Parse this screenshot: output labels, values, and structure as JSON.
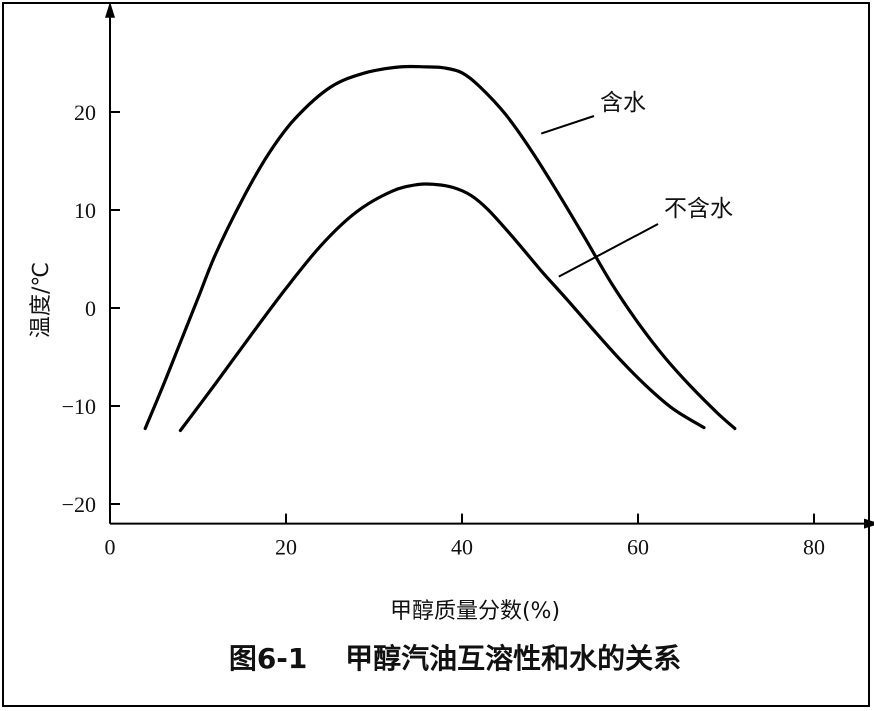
{
  "chart_data": {
    "type": "line",
    "xlabel": "甲醇质量分数(%)",
    "ylabel": "温度/℃",
    "caption": {
      "figure_number": "图6-1",
      "title": "甲醇汽油互溶性和水的关系"
    },
    "xlim": [
      0,
      85
    ],
    "ylim": [
      -22,
      29
    ],
    "x_ticks": [
      0,
      20,
      40,
      60,
      80
    ],
    "y_ticks": [
      -20,
      -10,
      0,
      10,
      20
    ],
    "x_tick_labels": [
      "0",
      "20",
      "40",
      "60",
      "80"
    ],
    "y_tick_labels": [
      "−20",
      "−10",
      "0",
      "10",
      "20"
    ],
    "grid": false,
    "legend": "none; series labeled by leader-line annotations",
    "series": [
      {
        "name": "含水",
        "color": "#000000",
        "x": [
          4,
          6,
          8,
          10,
          12,
          15,
          18,
          21,
          25,
          29,
          33,
          36,
          38,
          40,
          42,
          45,
          48,
          51,
          54,
          57,
          60,
          63,
          66,
          69,
          71
        ],
        "y": [
          -12.3,
          -8.0,
          -3.5,
          1.0,
          5.5,
          11.0,
          15.7,
          19.3,
          22.5,
          24.0,
          24.6,
          24.6,
          24.5,
          24.0,
          22.6,
          19.7,
          15.9,
          11.6,
          7.1,
          2.5,
          -1.5,
          -5.0,
          -8.0,
          -10.7,
          -12.3
        ]
      },
      {
        "name": "不含水",
        "color": "#000000",
        "x": [
          8,
          12,
          16,
          20,
          24,
          28,
          32,
          35,
          37,
          39,
          41,
          43,
          46,
          49,
          52,
          55,
          58,
          61,
          64,
          67.5
        ],
        "y": [
          -12.5,
          -7.7,
          -2.8,
          2.0,
          6.4,
          9.8,
          11.9,
          12.6,
          12.6,
          12.3,
          11.5,
          10.0,
          7.0,
          3.8,
          0.8,
          -2.3,
          -5.3,
          -8.0,
          -10.3,
          -12.2
        ]
      }
    ],
    "annotations": [
      {
        "text": "含水",
        "series": "含水",
        "anchor_x": 49,
        "anchor_y": 17.8
      },
      {
        "text": "不含水",
        "series": "不含水",
        "anchor_x": 51,
        "anchor_y": 3.2
      }
    ]
  },
  "colors": {
    "line": "#000000",
    "text": "#111111",
    "background": "#ffffff"
  }
}
